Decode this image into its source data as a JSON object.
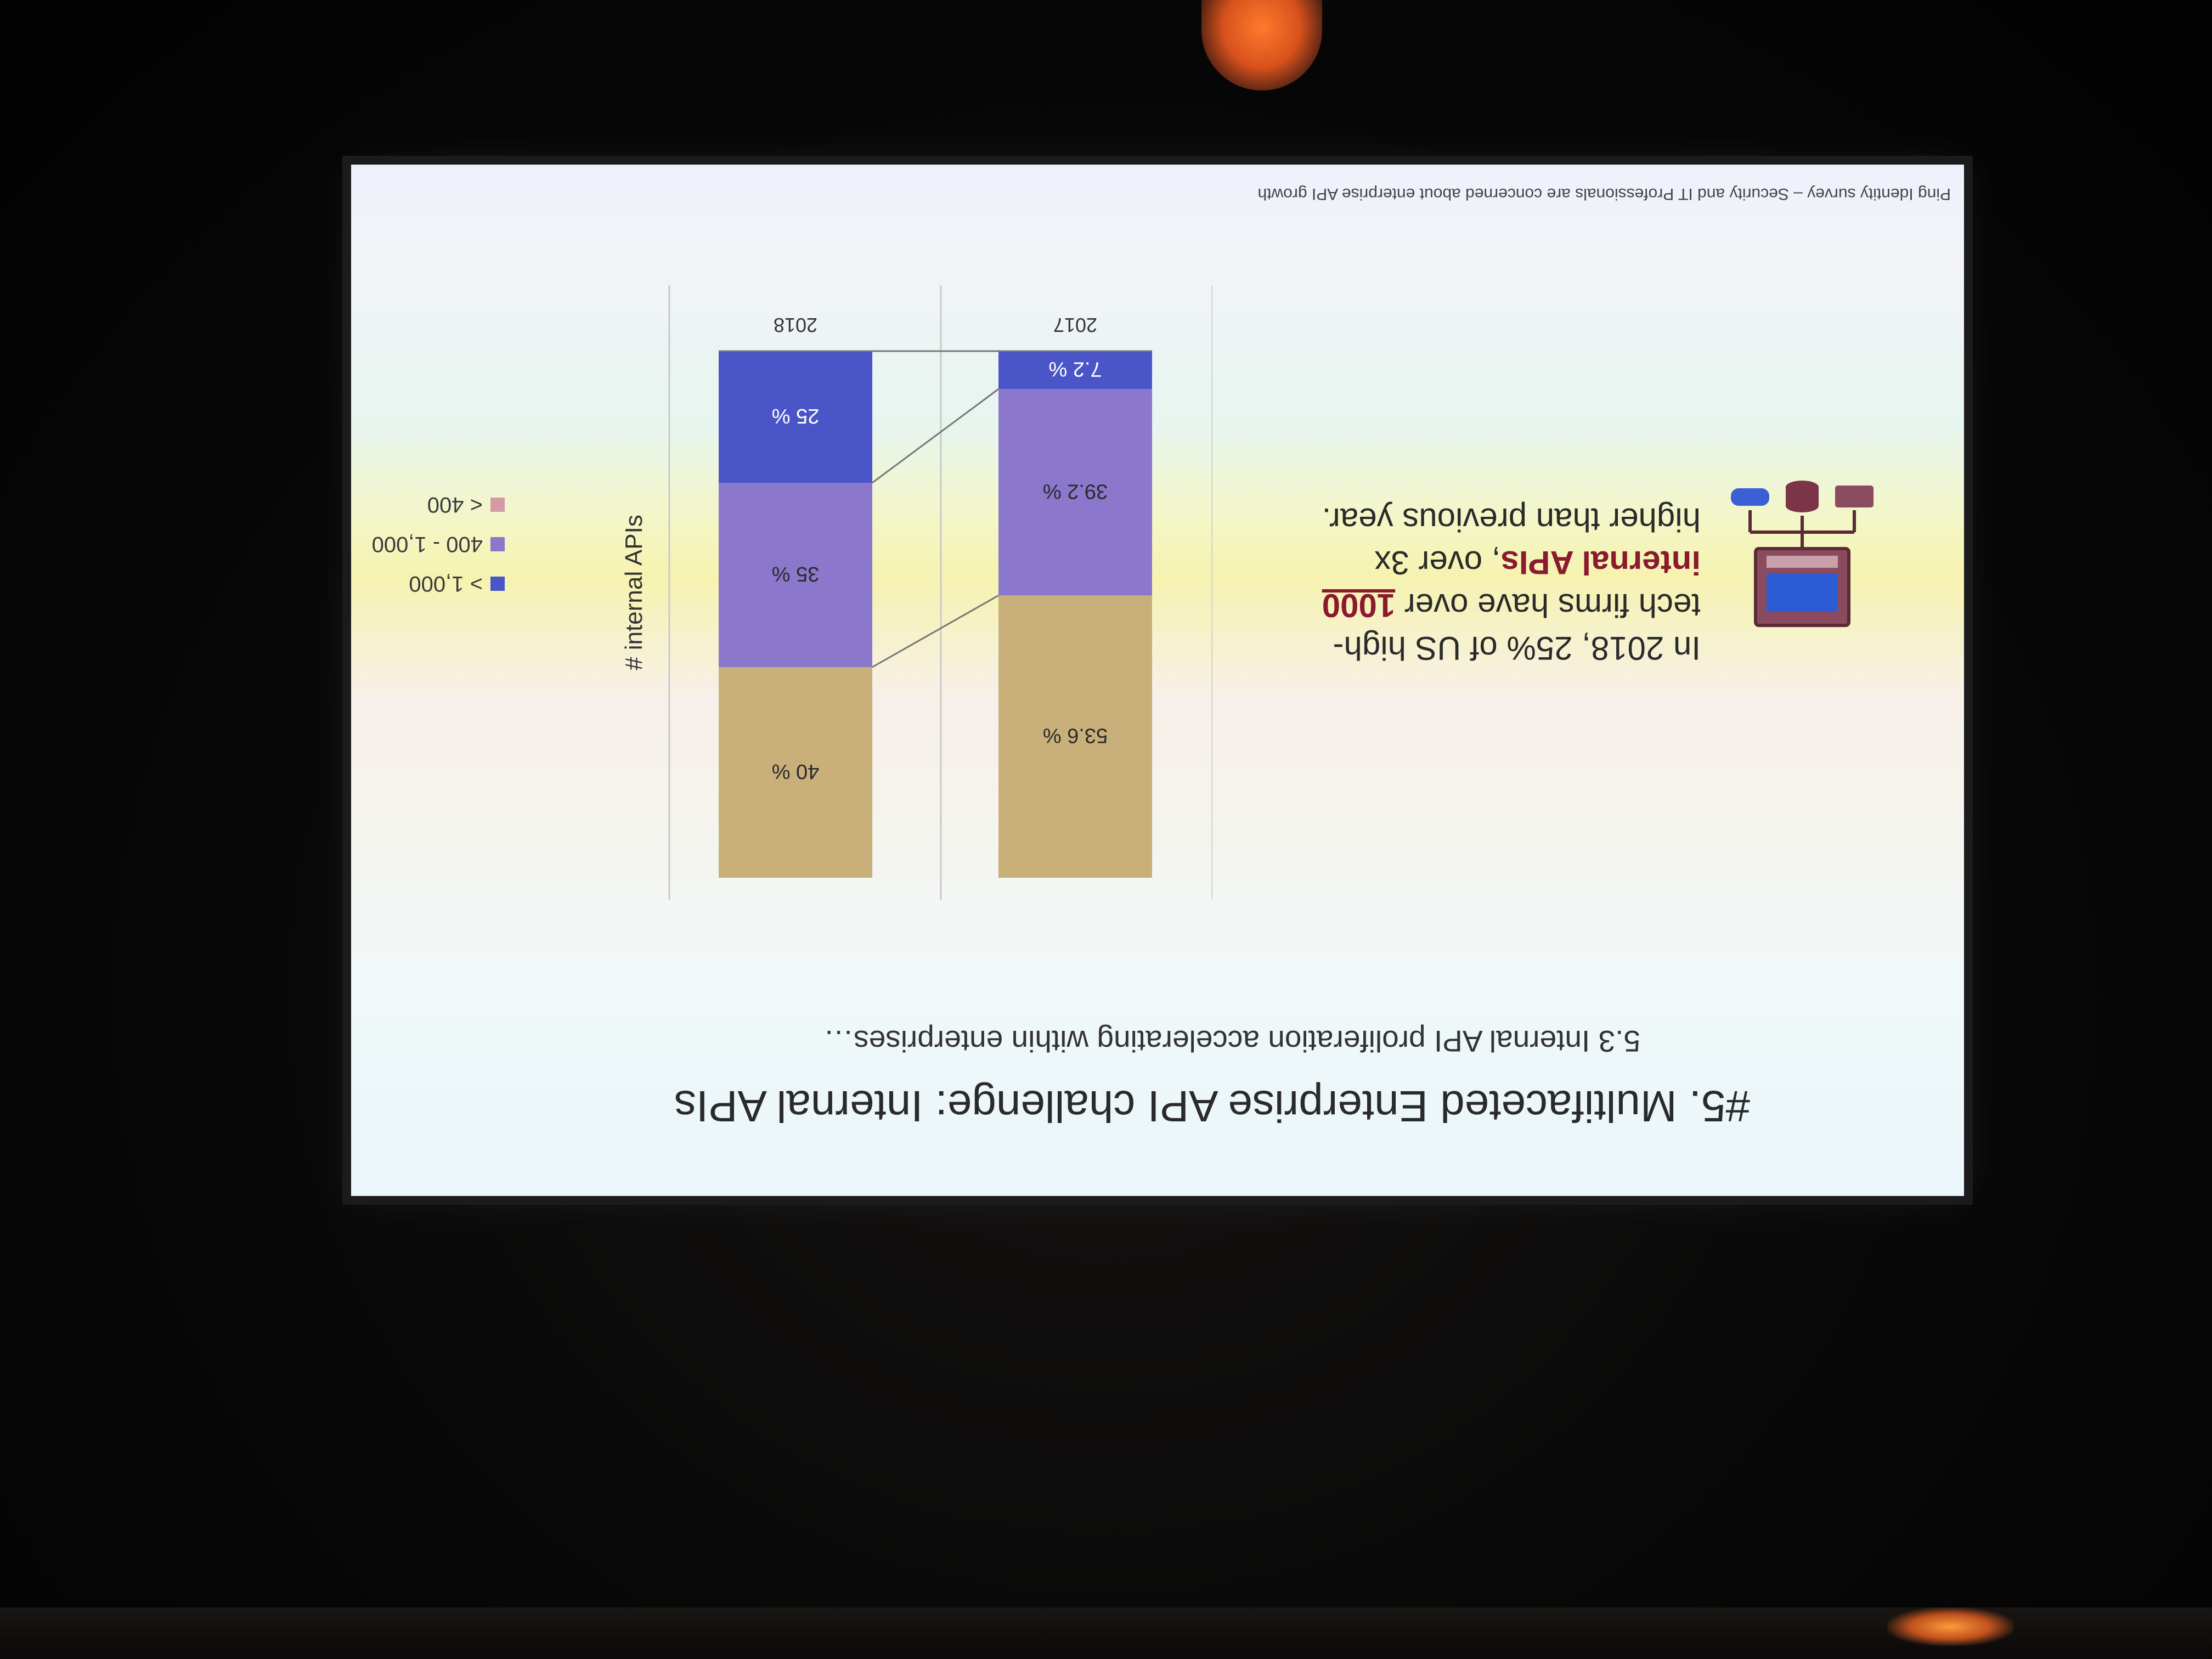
{
  "slide": {
    "title": "#5. Multifaceted Enterprise API challenge: Internal APIs",
    "subtitle": "5.3 Internal API proliferation accelerating within enterprises…",
    "callout": {
      "part1": "In 2018, 25% of US high-tech firms have over ",
      "highlight_number": "1000",
      "part2": " ",
      "highlight_text": "internal APIs",
      "part3": ", over 3x higher than previous year."
    },
    "source": "Ping Identity survey – Security and IT Professionals are concerned about enterprise API growth"
  },
  "chart_data": {
    "type": "bar",
    "stacked": true,
    "orientation": "vertical",
    "ylabel": "# internal APIs",
    "categories": [
      "2017",
      "2018"
    ],
    "series": [
      {
        "name": "> 1,000",
        "values": [
          7.2,
          25
        ],
        "labels": [
          "7.2 %",
          "25 %"
        ],
        "color": "#4a55c8"
      },
      {
        "name": "400 - 1,000",
        "values": [
          39.2,
          35
        ],
        "labels": [
          "39.2 %",
          "35 %"
        ],
        "color": "#8b78cc"
      },
      {
        "name": "< 400",
        "values": [
          53.6,
          40
        ],
        "labels": [
          "53.6 %",
          "40 %"
        ],
        "color": "#c9b07a"
      }
    ],
    "ylim": [
      0,
      100
    ],
    "legend_position": "right"
  }
}
